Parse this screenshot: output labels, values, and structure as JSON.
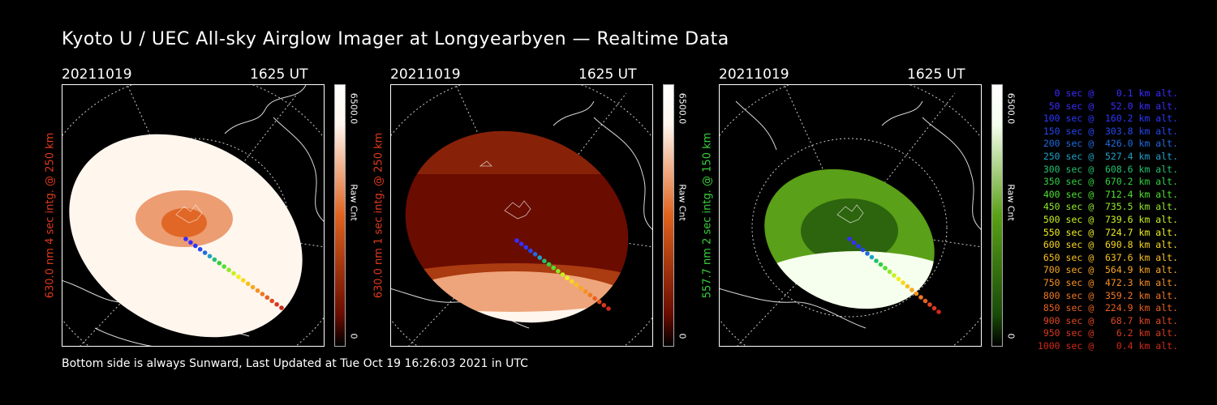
{
  "title": "Kyoto U / UEC All-sky Airglow Imager at Longyearbyen — Realtime Data",
  "footer": "Bottom side is always Sunward, Last Updated at Tue Oct 19 16:26:03 2021 in UTC",
  "panels": [
    {
      "date": "20211019",
      "time": "1625 UT",
      "side_label": "630.0 nm 4 sec intg. @ 250 km",
      "side_color": "#e03a1c",
      "cbar_max": "6500.0",
      "cbar_label": "Raw Cnt",
      "cbar_min": "0",
      "colors": {
        "low": "#6a0c00",
        "mid": "#e0621e",
        "high": "#fff6ee"
      }
    },
    {
      "date": "20211019",
      "time": "1625 UT",
      "side_label": "630.0 nm 1 sec intg. @ 250 km",
      "side_color": "#e03a1c",
      "cbar_max": "6500.0",
      "cbar_label": "Raw Cnt",
      "cbar_min": "0",
      "colors": {
        "low": "#6a0c00",
        "mid": "#e0621e",
        "high": "#fff6ee"
      }
    },
    {
      "date": "20211019",
      "time": "1625 UT",
      "side_label": "557.7 nm 2 sec intg. @ 150 km",
      "side_color": "#38d03a",
      "cbar_max": "6500.0",
      "cbar_label": "Raw Cnt",
      "cbar_min": "0",
      "colors": {
        "low": "#1a4a0a",
        "mid": "#5aa018",
        "high": "#f6ffee"
      }
    }
  ],
  "legend": [
    {
      "text": "   0 sec @    0.1 km alt.",
      "color": "#3a2cff"
    },
    {
      "text": "  50 sec @   52.0 km alt.",
      "color": "#3a2cff"
    },
    {
      "text": " 100 sec @  160.2 km alt.",
      "color": "#2b38ff"
    },
    {
      "text": " 150 sec @  303.8 km alt.",
      "color": "#2548f0"
    },
    {
      "text": " 200 sec @  426.0 km alt.",
      "color": "#1f6ae0"
    },
    {
      "text": " 250 sec @  527.4 km alt.",
      "color": "#20a0c8"
    },
    {
      "text": " 300 sec @  608.6 km alt.",
      "color": "#22c070"
    },
    {
      "text": " 350 sec @  670.2 km alt.",
      "color": "#30d040"
    },
    {
      "text": " 400 sec @  712.4 km alt.",
      "color": "#50e030"
    },
    {
      "text": " 450 sec @  735.5 km alt.",
      "color": "#90e828"
    },
    {
      "text": " 500 sec @  739.6 km alt.",
      "color": "#c8f020"
    },
    {
      "text": " 550 sec @  724.7 km alt.",
      "color": "#f0f020"
    },
    {
      "text": " 600 sec @  690.8 km alt.",
      "color": "#f8d820"
    },
    {
      "text": " 650 sec @  637.6 km alt.",
      "color": "#f8c020"
    },
    {
      "text": " 700 sec @  564.9 km alt.",
      "color": "#f8a820"
    },
    {
      "text": " 750 sec @  472.3 km alt.",
      "color": "#f89020"
    },
    {
      "text": " 800 sec @  359.2 km alt.",
      "color": "#f07820"
    },
    {
      "text": " 850 sec @  224.9 km alt.",
      "color": "#e86020"
    },
    {
      "text": " 900 sec @   68.7 km alt.",
      "color": "#e04820"
    },
    {
      "text": " 950 sec @    6.2 km alt.",
      "color": "#d83820"
    },
    {
      "text": "1000 sec @    0.4 km alt.",
      "color": "#d02818"
    }
  ]
}
